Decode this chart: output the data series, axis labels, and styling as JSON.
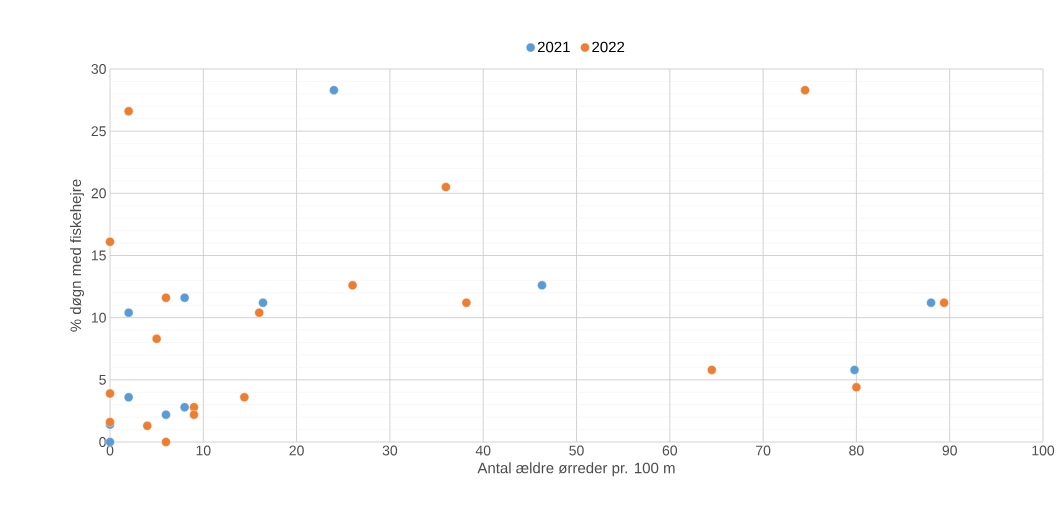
{
  "chart_data": {
    "type": "scatter",
    "xlabel": "Antal ældre ørreder pr. 100 m",
    "ylabel": "% døgn med fiskehejre",
    "xlim": [
      0,
      100
    ],
    "ylim": [
      0,
      30
    ],
    "xticks": [
      0,
      10,
      20,
      30,
      40,
      50,
      60,
      70,
      80,
      90,
      100
    ],
    "yticks": [
      0,
      5,
      10,
      15,
      20,
      25,
      30
    ],
    "grid": true,
    "legend": "top",
    "marker": "circle",
    "series": [
      {
        "name": "2021",
        "color": "#5b9bd5",
        "x": [
          0,
          0,
          2,
          2,
          6,
          8,
          8,
          16.4,
          24,
          46.3,
          79.8,
          88
        ],
        "values": [
          0,
          1.4,
          10.4,
          3.6,
          2.2,
          11.6,
          2.8,
          11.2,
          28.3,
          12.6,
          5.8,
          11.2
        ]
      },
      {
        "name": "2022",
        "color": "#ed7d31",
        "x": [
          0,
          0,
          0,
          2,
          4,
          5,
          6,
          6,
          9,
          9,
          14.4,
          16,
          26,
          36,
          38.2,
          64.5,
          74.5,
          80,
          89.4
        ],
        "values": [
          16.1,
          3.9,
          1.6,
          26.6,
          1.3,
          8.3,
          11.6,
          0,
          2.8,
          2.2,
          3.6,
          10.4,
          12.6,
          20.5,
          11.2,
          5.8,
          28.3,
          4.4,
          11.2
        ]
      }
    ]
  }
}
